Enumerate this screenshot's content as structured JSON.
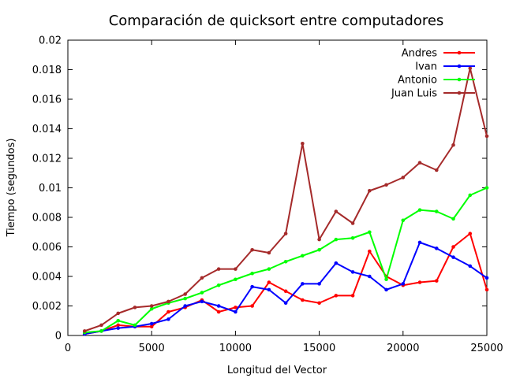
{
  "chart_data": {
    "type": "line",
    "title": "Comparación de quicksort entre computadores",
    "xlabel": "Longitud del Vector",
    "ylabel": "Tiempo (segundos)",
    "xlim": [
      0,
      25000
    ],
    "ylim": [
      0,
      0.02
    ],
    "xticks": [
      0,
      5000,
      10000,
      15000,
      20000,
      25000
    ],
    "xtick_labels": [
      "0",
      "5000",
      "10000",
      "15000",
      "20000",
      "25000"
    ],
    "yticks": [
      0,
      0.002,
      0.004,
      0.006,
      0.008,
      0.01,
      0.012,
      0.014,
      0.016,
      0.018,
      0.02
    ],
    "ytick_labels": [
      "0",
      "0.002",
      "0.004",
      "0.006",
      "0.008",
      "0.01",
      "0.012",
      "0.014",
      "0.016",
      "0.018",
      "0.02"
    ],
    "grid": false,
    "legend_position": "top-right",
    "x": [
      1000,
      2000,
      3000,
      4000,
      5000,
      6000,
      7000,
      8000,
      9000,
      10000,
      11000,
      12000,
      13000,
      14000,
      15000,
      16000,
      17000,
      18000,
      19000,
      20000,
      21000,
      22000,
      23000,
      24000,
      25000
    ],
    "series": [
      {
        "name": "Andres",
        "color": "#ff0000",
        "values": [
          0.0001,
          0.0003,
          0.0007,
          0.0006,
          0.0006,
          0.0016,
          0.0019,
          0.0024,
          0.0016,
          0.0019,
          0.002,
          0.0036,
          0.003,
          0.0024,
          0.0022,
          0.0027,
          0.0027,
          0.0057,
          0.004,
          0.0034,
          0.0036,
          0.0037,
          0.006,
          0.0069,
          0.0031
        ]
      },
      {
        "name": "Ivan",
        "color": "#0000ff",
        "values": [
          0.0001,
          0.0003,
          0.0005,
          0.0006,
          0.0008,
          0.0011,
          0.002,
          0.0023,
          0.002,
          0.0016,
          0.0033,
          0.0031,
          0.0022,
          0.0035,
          0.0035,
          0.0049,
          0.0043,
          0.004,
          0.0031,
          0.0035,
          0.0063,
          0.0059,
          0.0053,
          0.0047,
          0.0039
        ]
      },
      {
        "name": "Antonio",
        "color": "#00ff00",
        "values": [
          0.0002,
          0.0003,
          0.001,
          0.0007,
          0.0018,
          0.0022,
          0.0025,
          0.0029,
          0.0034,
          0.0038,
          0.0042,
          0.0045,
          0.005,
          0.0054,
          0.0058,
          0.0065,
          0.0066,
          0.007,
          0.0038,
          0.0078,
          0.0085,
          0.0084,
          0.0079,
          0.0095,
          0.01
        ]
      },
      {
        "name": "Juan Luis",
        "color": "#a52a2a",
        "values": [
          0.0003,
          0.0007,
          0.0015,
          0.0019,
          0.002,
          0.0023,
          0.0028,
          0.0039,
          0.0045,
          0.0045,
          0.0058,
          0.0056,
          0.0069,
          0.013,
          0.0065,
          0.0084,
          0.0076,
          0.0098,
          0.0102,
          0.0107,
          0.0117,
          0.0112,
          0.0129,
          0.0181,
          0.0135
        ]
      }
    ]
  }
}
